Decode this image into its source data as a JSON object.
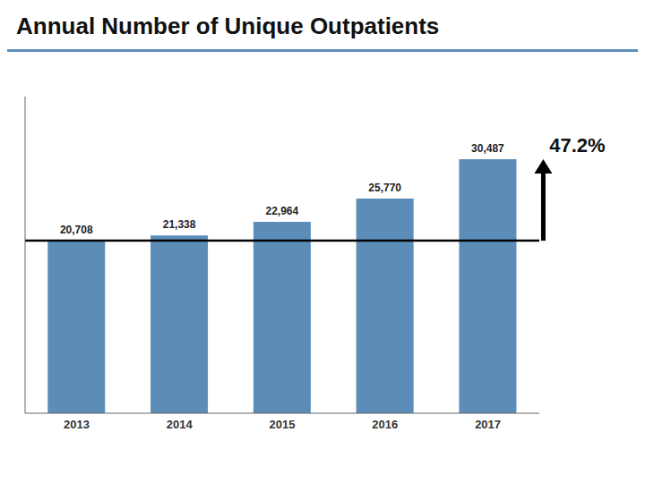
{
  "chart_data": {
    "type": "bar",
    "title": "Annual Number of Unique Outpatients",
    "categories": [
      "2013",
      "2014",
      "2015",
      "2016",
      "2017"
    ],
    "values": [
      20708,
      21338,
      22964,
      25770,
      30487
    ],
    "value_labels": [
      "20,708",
      "21,338",
      "22,964",
      "25,770",
      "30,487"
    ],
    "data_labels": true,
    "color": "#5B8DB8",
    "ylim": [
      0,
      38000
    ],
    "tick_labels": "x",
    "grid": false,
    "baseline": 20708,
    "annotation": "47.2%"
  }
}
